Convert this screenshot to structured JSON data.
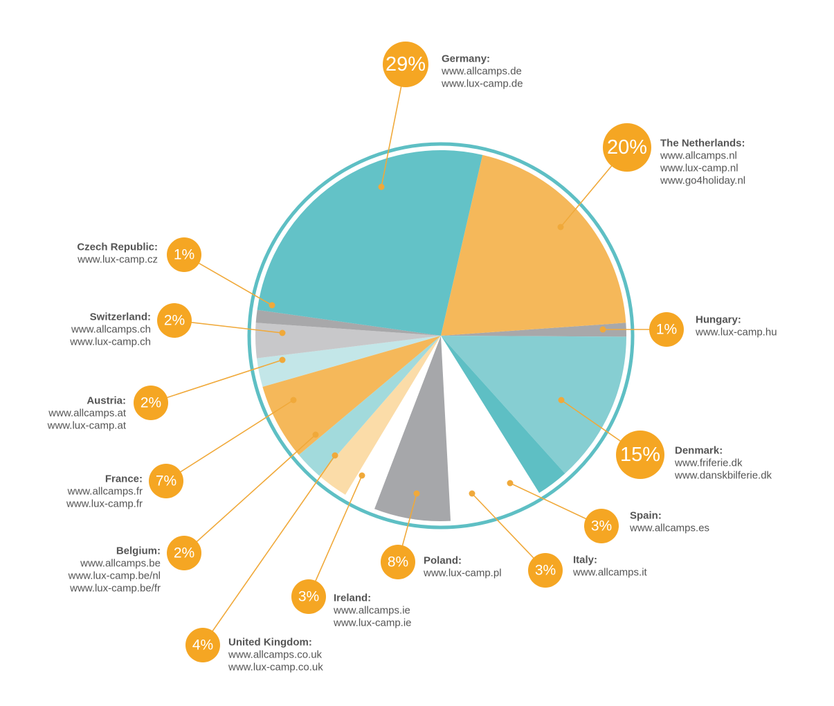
{
  "chart_data": {
    "type": "pie",
    "colors": {
      "ring": "#5ebfc4",
      "accent": "#f5a623",
      "leader": "#f0a93a",
      "text": "#555555"
    },
    "slices": [
      {
        "key": "hungary",
        "country": "Hungary:",
        "label": "1%",
        "value": 1,
        "color": "#a8a8aa",
        "sites": [
          "www.lux-camp.hu"
        ]
      },
      {
        "key": "germany",
        "country": "Germany:",
        "label": "29%",
        "value": 29,
        "color": "#63c2c7",
        "sites": [
          "www.allcamps.de",
          "www.lux-camp.de"
        ]
      },
      {
        "key": "czech",
        "country": "Czech Republic:",
        "label": "1%",
        "value": 1,
        "color": "#a8a8aa",
        "sites": [
          "www.lux-camp.cz"
        ]
      },
      {
        "key": "switzerland",
        "country": "Switzerland:",
        "label": "2%",
        "value": 2,
        "color": "#c8c8ca",
        "sites": [
          "www.allcamps.ch",
          "www.lux-camp.ch"
        ]
      },
      {
        "key": "austria",
        "country": "Austria:",
        "label": "2%",
        "value": 2,
        "color": "#c3e6e8",
        "sites": [
          "www.allcamps.at",
          "www.lux-camp.at"
        ]
      },
      {
        "key": "france",
        "country": "France:",
        "label": "7%",
        "value": 7,
        "color": "#f5b85a",
        "sites": [
          "www.allcamps.fr",
          "www.lux-camp.fr"
        ]
      },
      {
        "key": "belgium",
        "country": "Belgium:",
        "label": "2%",
        "value": 2,
        "color": "#a2dadc",
        "sites": [
          "www.allcamps.be",
          "www.lux-camp.be/nl",
          "www.lux-camp.be/fr"
        ]
      },
      {
        "key": "uk",
        "country": "United Kingdom:",
        "label": "4%",
        "value": 4,
        "color": "#fbdca8",
        "sites": [
          "www.allcamps.co.uk",
          "www.lux-camp.co.uk"
        ]
      },
      {
        "key": "ireland",
        "country": "Ireland:",
        "label": "3%",
        "value": 3,
        "color": "#ffffff",
        "sites": [
          "www.allcamps.ie",
          "www.lux-camp.ie"
        ]
      },
      {
        "key": "poland",
        "country": "Poland:",
        "label": "8%",
        "value": 8,
        "color": "#a6a7aa",
        "sites": [
          "www.lux-camp.pl"
        ]
      },
      {
        "key": "italy",
        "country": "Italy:",
        "label": "3%",
        "value": 3,
        "color": "#ffffff",
        "sites": [
          "www.allcamps.it"
        ]
      },
      {
        "key": "spain",
        "country": "Spain:",
        "label": "3%",
        "value": 3,
        "color": "#5ebfc4",
        "sites": [
          "www.allcamps.es"
        ]
      },
      {
        "key": "denmark",
        "country": "Denmark:",
        "label": "15%",
        "value": 15,
        "color": "#86ced2",
        "sites": [
          "www.friferie.dk",
          "www.danskbilferie.dk"
        ]
      },
      {
        "key": "netherlands",
        "country": "The Netherlands:",
        "label": "20%",
        "value": 20,
        "color": "#f5b85a",
        "sites": [
          "www.allcamps.nl",
          "www.lux-camp.nl",
          "www.go4holiday.nl"
        ]
      }
    ]
  }
}
